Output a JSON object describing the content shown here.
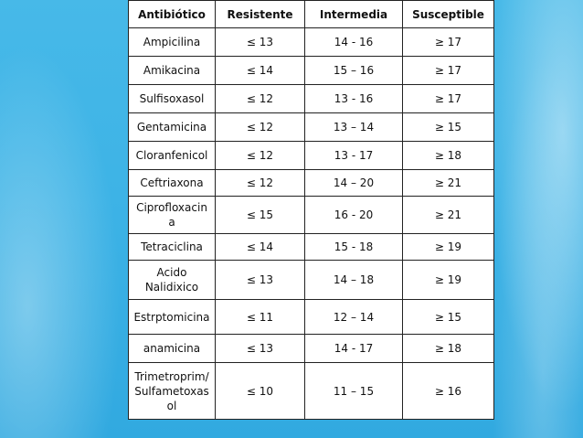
{
  "table": {
    "headers": [
      "Antibiótico",
      "Resistente",
      "Intermedia",
      "Susceptible"
    ],
    "rows": [
      {
        "name": "Ampicilina",
        "resistente": "≤ 13",
        "intermedia": "14 - 16",
        "susceptible": "≥ 17"
      },
      {
        "name": "Amikacina",
        "resistente": "≤ 14",
        "intermedia": "15 – 16",
        "susceptible": "≥ 17"
      },
      {
        "name": "Sulfisoxasol",
        "resistente": "≤ 12",
        "intermedia": "13 - 16",
        "susceptible": "≥ 17"
      },
      {
        "name": "Gentamicina",
        "resistente": "≤ 12",
        "intermedia": "13 – 14",
        "susceptible": "≥ 15"
      },
      {
        "name": "Cloranfenicol",
        "resistente": "≤ 12",
        "intermedia": "13 - 17",
        "susceptible": "≥ 18"
      },
      {
        "name": "Ceftriaxona",
        "resistente": "≤ 12",
        "intermedia": "14 – 20",
        "susceptible": "≥ 21"
      },
      {
        "name": "Ciprofloxacin\na",
        "resistente": "≤ 15",
        "intermedia": "16 - 20",
        "susceptible": "≥ 21"
      },
      {
        "name": "Tetraciclina",
        "resistente": "≤ 14",
        "intermedia": "15 - 18",
        "susceptible": "≥ 19"
      },
      {
        "name": "Acido\nNalidixico",
        "resistente": "≤ 13",
        "intermedia": "14 – 18",
        "susceptible": "≥ 19"
      },
      {
        "name": "Estrptomicina",
        "resistente": "≤ 11",
        "intermedia": "12 – 14",
        "susceptible": "≥ 15"
      },
      {
        "name": "anamicina",
        "resistente": "≤ 13",
        "intermedia": "14 - 17",
        "susceptible": "≥ 18"
      },
      {
        "name": "Trimetroprim/\nSulfametoxas\nol",
        "resistente": "≤ 10",
        "intermedia": "11 – 15",
        "susceptible": "≥ 16"
      }
    ]
  }
}
